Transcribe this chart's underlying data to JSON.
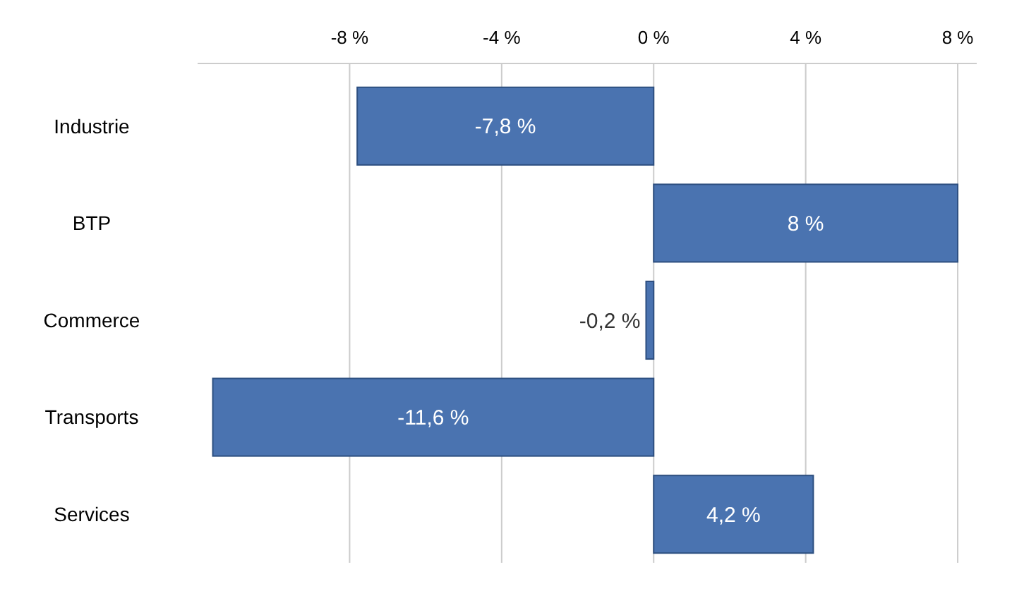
{
  "chart_data": {
    "type": "bar",
    "orientation": "horizontal",
    "categories": [
      "Industrie",
      "BTP",
      "Commerce",
      "Transports",
      "Services"
    ],
    "values": [
      -7.8,
      8,
      -0.2,
      -11.6,
      4.2
    ],
    "value_labels": [
      "-7,8 %",
      "8 %",
      "-0,2 %",
      "-11,6 %",
      "4,2 %"
    ],
    "color": "#4a73b0",
    "xlim": [
      -12,
      8.5
    ],
    "xticks": [
      {
        "value": -8,
        "label": "-8 %"
      },
      {
        "value": -4,
        "label": "-4 %"
      },
      {
        "value": 0,
        "label": "0 %"
      },
      {
        "value": 4,
        "label": "4 %"
      },
      {
        "value": 8,
        "label": "8 %"
      }
    ],
    "grid": "x"
  }
}
